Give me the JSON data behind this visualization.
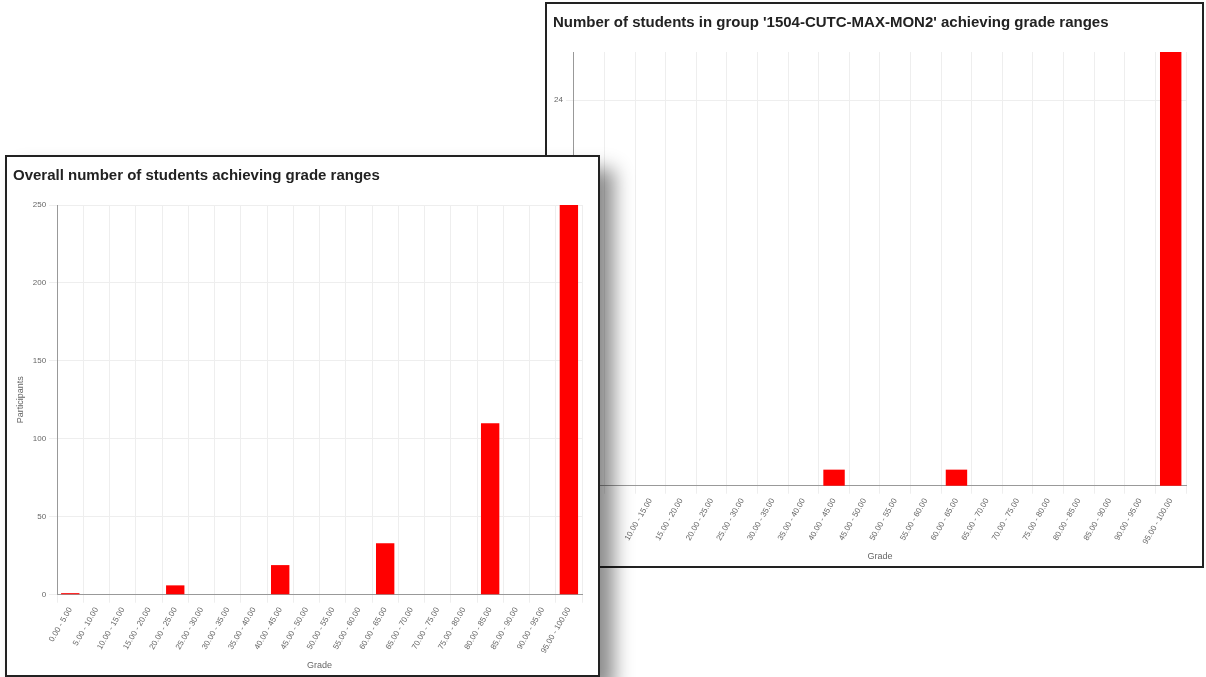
{
  "chart_data": [
    {
      "type": "bar",
      "title": "Overall number of students achieving grade ranges",
      "xlabel": "Grade",
      "ylabel": "Participants",
      "categories": [
        "0.00 - 5.00",
        "5.00 - 10.00",
        "10.00 - 15.00",
        "15.00 - 20.00",
        "20.00 - 25.00",
        "25.00 - 30.00",
        "30.00 - 35.00",
        "35.00 - 40.00",
        "40.00 - 45.00",
        "45.00 - 50.00",
        "50.00 - 55.00",
        "55.00 - 60.00",
        "60.00 - 65.00",
        "65.00 - 70.00",
        "70.00 - 75.00",
        "75.00 - 80.00",
        "80.00 - 85.00",
        "85.00 - 90.00",
        "90.00 - 95.00",
        "95.00 - 100.00"
      ],
      "values": [
        1,
        0,
        0,
        0,
        6,
        0,
        0,
        0,
        19,
        0,
        0,
        0,
        33,
        0,
        0,
        0,
        110,
        0,
        0,
        250
      ],
      "color": "#ff0000",
      "ylim": [
        0,
        250
      ],
      "yticks": [
        0,
        50,
        100,
        150,
        200,
        250
      ],
      "grid": true
    },
    {
      "type": "bar",
      "title": "Number of students in group '1504-CUTC-MAX-MON2' achieving grade ranges",
      "xlabel": "Grade",
      "categories": [
        null,
        null,
        "10.00 - 15.00",
        "15.00 - 20.00",
        "20.00 - 25.00",
        "25.00 - 30.00",
        "30.00 - 35.00",
        "35.00 - 40.00",
        "40.00 - 45.00",
        "45.00 - 50.00",
        "50.00 - 55.00",
        "55.00 - 60.00",
        "60.00 - 65.00",
        "65.00 - 70.00",
        "70.00 - 75.00",
        "75.00 - 80.00",
        "80.00 - 85.00",
        "85.00 - 90.00",
        "90.00 - 95.00",
        "95.00 - 100.00"
      ],
      "values": [
        null,
        null,
        0,
        0,
        0,
        0,
        0,
        0,
        1,
        0,
        0,
        0,
        1,
        0,
        0,
        0,
        0,
        0,
        0,
        27
      ],
      "color": "#ff0000",
      "ylim": [
        0,
        27
      ],
      "yticks": [
        24
      ],
      "grid": true
    }
  ]
}
